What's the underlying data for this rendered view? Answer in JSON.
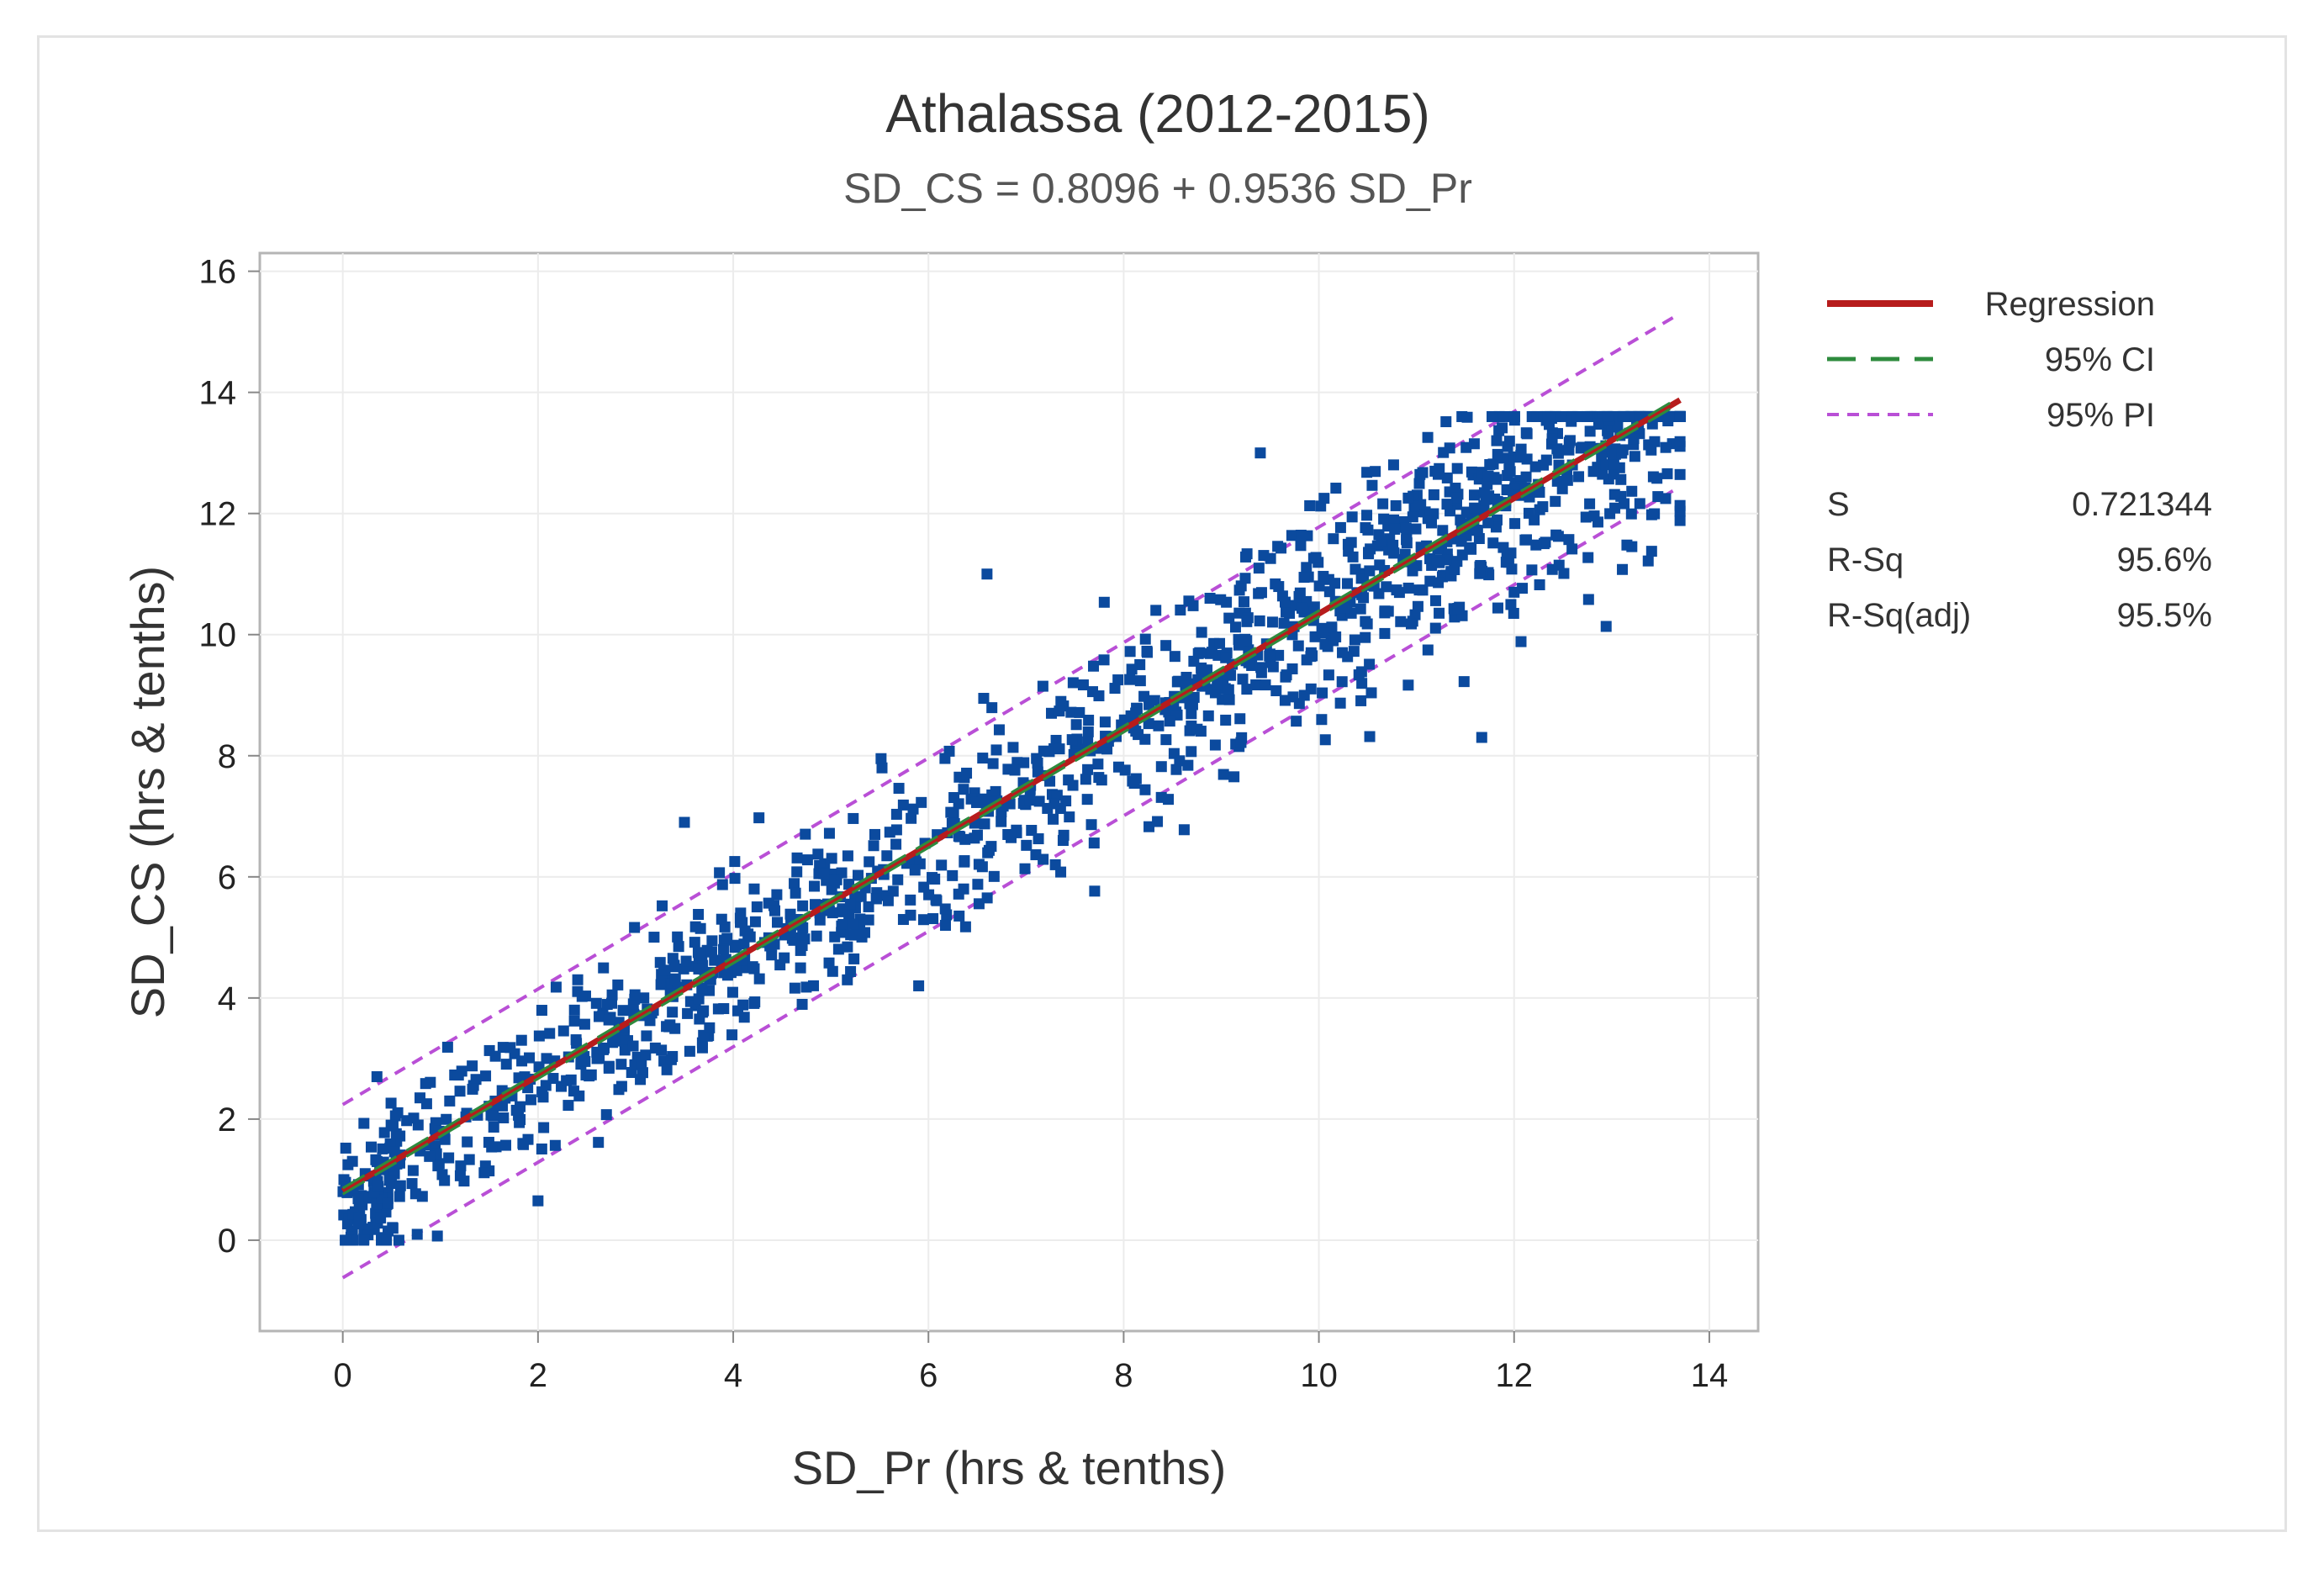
{
  "chart_data": {
    "type": "scatter",
    "title": "Athalassa (2012-2015)",
    "subtitle": "SD_CS = 0.8096 + 0.9536 SD_Pr",
    "xlabel": "SD_Pr (hrs & tenths)",
    "ylabel": "SD_CS (hrs & tenths)",
    "xlim": [
      -0.85,
      14.5
    ],
    "ylim": [
      -1.5,
      16.3
    ],
    "xticks": [
      0,
      2,
      4,
      6,
      8,
      10,
      12,
      14
    ],
    "yticks": [
      0,
      2,
      4,
      6,
      8,
      10,
      12,
      14,
      16
    ],
    "grid": true,
    "legend_position": "right",
    "regression": {
      "intercept": 0.8096,
      "slope": 0.9536,
      "x_range": [
        0,
        13.7
      ]
    },
    "ci_halfwidth": 0.05,
    "pi_halfwidth": 1.43,
    "series_color": "#0b4a9e",
    "regression_color": "#b71c1c",
    "ci_color": "#2e8b3d",
    "pi_color": "#b94fd6",
    "n_points": 1400,
    "legend": [
      {
        "label": "Regression",
        "style": "solid",
        "color": "#b71c1c"
      },
      {
        "label": "95% CI",
        "style": "long-dash",
        "color": "#2e8b3d"
      },
      {
        "label": "95% PI",
        "style": "short-dash",
        "color": "#b94fd6"
      }
    ],
    "stats": [
      {
        "name": "S",
        "value": "0.721344"
      },
      {
        "name": "R-Sq",
        "value": "95.6%"
      },
      {
        "name": "R-Sq(adj)",
        "value": "95.5%"
      }
    ]
  }
}
